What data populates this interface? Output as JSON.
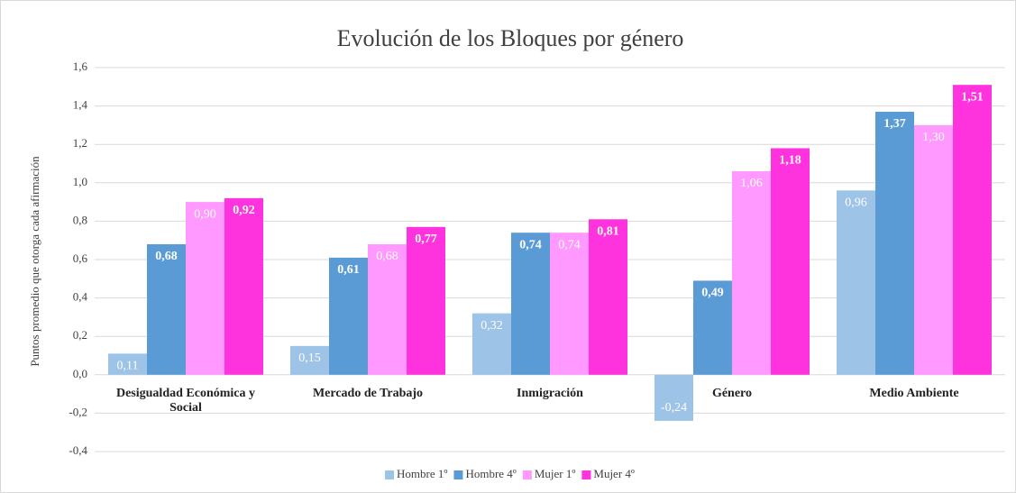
{
  "chart_data": {
    "type": "bar",
    "title": "Evolución de los Bloques por género",
    "y_label": "Puntos promedio que otorga cada afirmación",
    "categories": [
      "Desigualdad Económica y Social",
      "Mercado de Trabajo",
      "Inmigración",
      "Género",
      "Medio Ambiente"
    ],
    "series": [
      {
        "name": "Hombre 1º",
        "color": "#9dc3e6",
        "values": [
          0.11,
          0.15,
          0.32,
          -0.24,
          0.96
        ],
        "value_labels": [
          "0,11",
          "0,15",
          "0,32",
          "-0,24",
          "0,96"
        ]
      },
      {
        "name": "Hombre 4º",
        "color": "#5b9bd5",
        "values": [
          0.68,
          0.61,
          0.74,
          0.49,
          1.37
        ],
        "value_labels": [
          "0,68",
          "0,61",
          "0,74",
          "0,49",
          "1,37"
        ]
      },
      {
        "name": "Mujer 1º",
        "color": "#ff99ff",
        "values": [
          0.9,
          0.68,
          0.74,
          1.06,
          1.3
        ],
        "value_labels": [
          "0,90",
          "0,68",
          "0,74",
          "1,06",
          "1,30"
        ]
      },
      {
        "name": "Mujer 4º",
        "color": "#ff33dd",
        "values": [
          0.92,
          0.77,
          0.81,
          1.18,
          1.51
        ],
        "value_labels": [
          "0,92",
          "0,77",
          "0,81",
          "1,18",
          "1,51"
        ]
      }
    ],
    "ylim": [
      -0.4,
      1.6
    ],
    "yticks": [
      {
        "value": -0.4,
        "label": "-0,4"
      },
      {
        "value": -0.2,
        "label": "-0,2"
      },
      {
        "value": 0,
        "label": "0,0"
      },
      {
        "value": 0.2,
        "label": "0,2"
      },
      {
        "value": 0.4,
        "label": "0,4"
      },
      {
        "value": 0.6,
        "label": "0,6"
      },
      {
        "value": 0.8,
        "label": "0,8"
      },
      {
        "value": 1.0,
        "label": "1,0"
      },
      {
        "value": 1.2,
        "label": "1,2"
      },
      {
        "value": 1.4,
        "label": "1,4"
      },
      {
        "value": 1.6,
        "label": "1,6"
      }
    ],
    "grid": true,
    "legend": "bottom"
  }
}
